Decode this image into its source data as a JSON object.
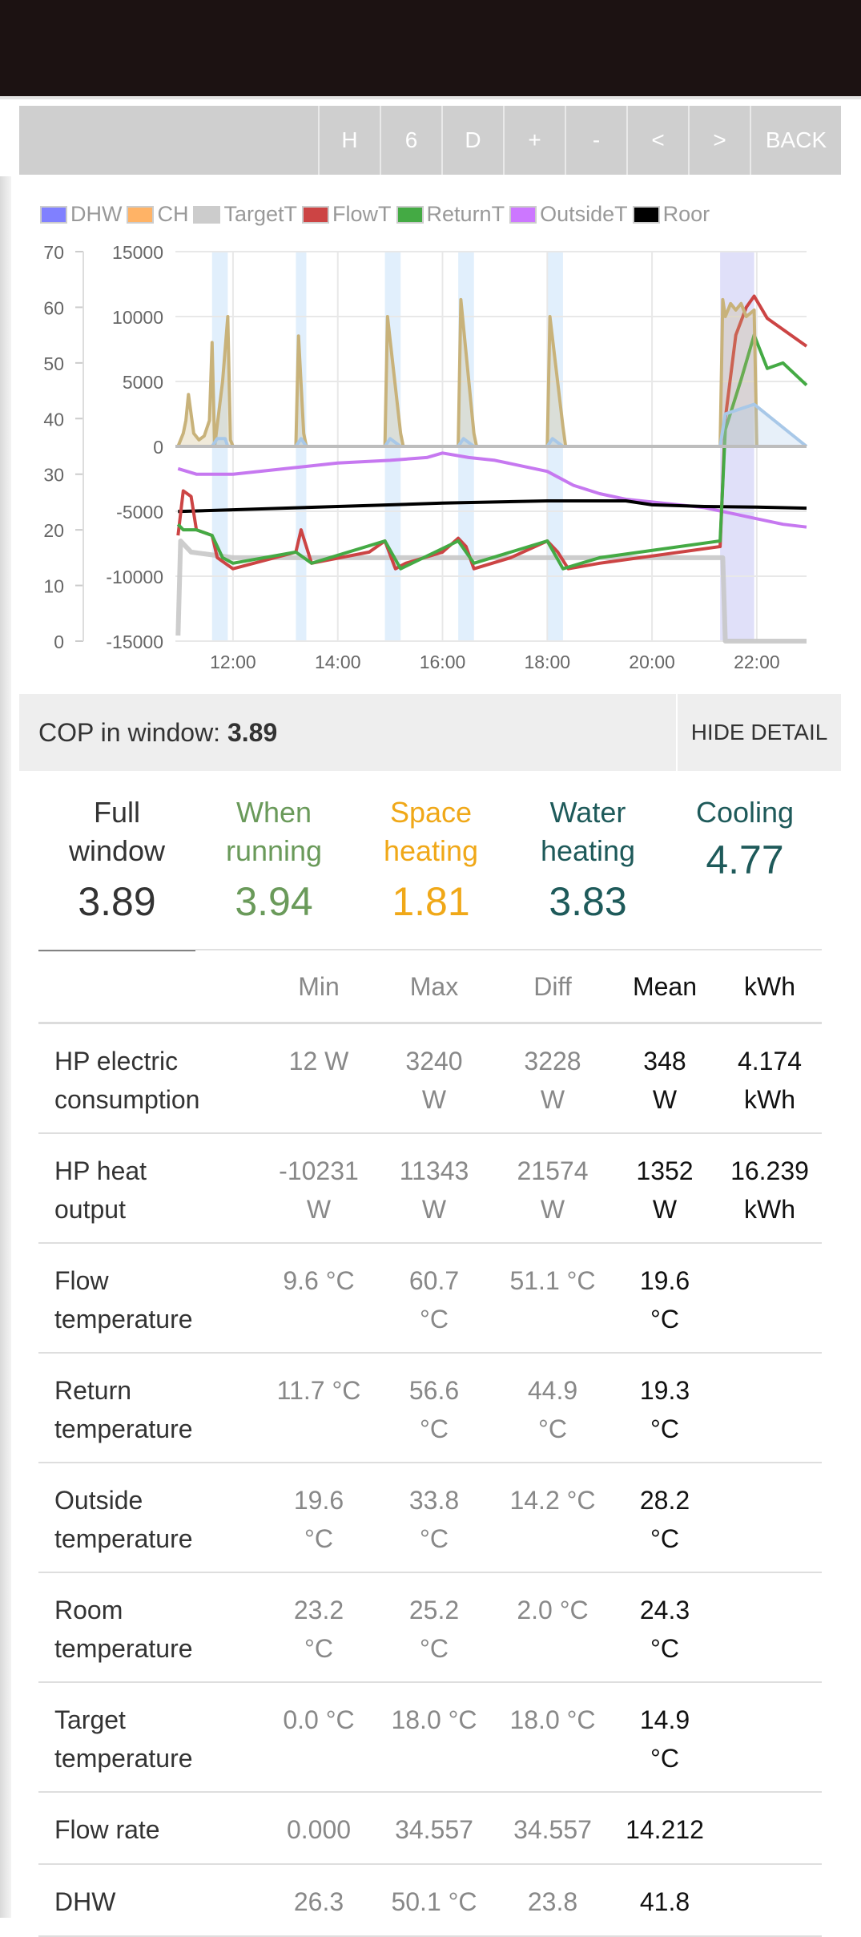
{
  "toolbar": {
    "buttons": [
      "H",
      "6",
      "D",
      "+",
      "-",
      "<",
      ">",
      "BACK"
    ]
  },
  "legend": [
    {
      "label": "DHW",
      "color": "#8080ff"
    },
    {
      "label": "CH",
      "color": "#ffb366"
    },
    {
      "label": "TargetT",
      "color": "#cccccc"
    },
    {
      "label": "FlowT",
      "color": "#cc4444"
    },
    {
      "label": "ReturnT",
      "color": "#44aa44"
    },
    {
      "label": "OutsideT",
      "color": "#cc77ff"
    },
    {
      "label": "Roor",
      "color": "#000000"
    }
  ],
  "chart_data": {
    "type": "line",
    "left_axis_ticks": [
      0,
      10,
      20,
      30,
      40,
      50,
      60,
      70
    ],
    "right_axis_ticks": [
      -15000,
      -10000,
      -5000,
      0,
      5000,
      10000,
      15000
    ],
    "x_ticks": [
      "12:00",
      "14:00",
      "16:00",
      "18:00",
      "20:00",
      "22:00"
    ],
    "x_range": [
      10.9,
      22.95
    ],
    "ylim_left": [
      0,
      70
    ],
    "ylim_right": [
      -15000,
      15000
    ],
    "grid": true,
    "shaded_periods": [
      [
        11.6,
        11.9
      ],
      [
        13.2,
        13.4
      ],
      [
        14.9,
        15.2
      ],
      [
        16.3,
        16.6
      ],
      [
        18.0,
        18.3
      ],
      [
        21.3,
        21.95
      ]
    ],
    "series": [
      {
        "name": "TargetT",
        "color": "#c8c8c8",
        "axis": "left",
        "x": [
          10.95,
          11.0,
          11.2,
          12.0,
          14.0,
          16.0,
          18.0,
          21.35,
          21.4,
          22.95
        ],
        "values": [
          1,
          18,
          16,
          15,
          15,
          15,
          15,
          15,
          0,
          0
        ]
      },
      {
        "name": "OutsideT",
        "color": "#c678f0",
        "axis": "left",
        "x": [
          10.95,
          11.3,
          12.0,
          13.0,
          14.0,
          15.0,
          15.7,
          16.0,
          16.5,
          17.0,
          17.5,
          18.0,
          18.5,
          19.0,
          19.5,
          20.0,
          20.5,
          21.0,
          21.5,
          22.0,
          22.5,
          22.95
        ],
        "values": [
          31,
          30,
          30,
          31,
          32,
          32.5,
          33,
          33.8,
          33,
          32.5,
          31.5,
          30.5,
          28,
          26.5,
          25.5,
          25,
          24.5,
          24,
          23,
          22,
          21,
          20.5
        ]
      },
      {
        "name": "Room",
        "color": "#000000",
        "axis": "left",
        "x": [
          10.95,
          12.0,
          14.0,
          16.0,
          18.0,
          19.5,
          20.0,
          21.0,
          22.0,
          22.95
        ],
        "values": [
          23.3,
          23.6,
          24.2,
          24.8,
          25.2,
          25.2,
          24.5,
          24.2,
          24.1,
          23.9
        ]
      },
      {
        "name": "FlowT",
        "color": "#cc4444",
        "axis": "left",
        "x": [
          10.95,
          11.05,
          11.2,
          11.3,
          11.6,
          11.7,
          12.0,
          13.2,
          13.3,
          13.5,
          14.6,
          14.9,
          15.1,
          15.3,
          16.0,
          16.3,
          16.45,
          16.6,
          17.3,
          18.0,
          18.2,
          18.4,
          19.0,
          21.3,
          21.4,
          21.6,
          21.8,
          21.95,
          22.2,
          22.95
        ],
        "values": [
          19,
          27,
          26,
          20,
          19,
          15,
          13,
          16,
          20,
          14,
          16,
          18,
          13,
          14,
          16,
          18.5,
          17,
          13,
          15,
          18,
          16,
          13,
          14,
          17,
          40,
          55,
          60,
          62,
          58,
          53
        ]
      },
      {
        "name": "ReturnT",
        "color": "#44aa44",
        "axis": "left",
        "x": [
          10.95,
          11.05,
          11.3,
          11.6,
          11.8,
          12.0,
          13.2,
          13.5,
          14.9,
          15.2,
          16.3,
          16.6,
          18.0,
          18.3,
          19.0,
          21.3,
          21.4,
          21.7,
          21.95,
          22.2,
          22.5,
          22.95
        ],
        "values": [
          21,
          20,
          20,
          19,
          15,
          14,
          16,
          14,
          18,
          13,
          18,
          14,
          18,
          13,
          15,
          18,
          38,
          47,
          55,
          49,
          50,
          46
        ]
      },
      {
        "name": "HP heat",
        "color": "#c8b27a",
        "axis": "right",
        "x": [
          10.95,
          11.05,
          11.1,
          11.15,
          11.25,
          11.35,
          11.45,
          11.55,
          11.6,
          11.65,
          11.8,
          11.9,
          11.95,
          12.0,
          13.2,
          13.25,
          13.35,
          13.4,
          14.9,
          14.95,
          15.2,
          15.25,
          16.3,
          16.35,
          16.6,
          16.65,
          18.0,
          18.05,
          18.3,
          18.35,
          21.3,
          21.35,
          21.4,
          21.5,
          21.6,
          21.7,
          21.8,
          21.95,
          22.0,
          22.95
        ],
        "values": [
          0,
          1000,
          2000,
          4000,
          1000,
          500,
          800,
          2000,
          8000,
          0,
          5000,
          10000,
          500,
          0,
          0,
          8500,
          1000,
          0,
          0,
          10000,
          1000,
          0,
          0,
          11300,
          1000,
          0,
          0,
          10000,
          1500,
          0,
          0,
          11300,
          10000,
          11000,
          10500,
          11000,
          10000,
          10500,
          0,
          0
        ]
      },
      {
        "name": "HP elec",
        "color": "#a8c8e8",
        "axis": "right",
        "x": [
          10.95,
          11.6,
          11.7,
          11.85,
          11.9,
          12.0,
          13.2,
          13.3,
          13.4,
          14.9,
          15.0,
          15.2,
          16.3,
          16.4,
          16.6,
          18.0,
          18.1,
          18.3,
          21.3,
          21.4,
          21.95,
          22.95
        ],
        "values": [
          0,
          0,
          600,
          600,
          0,
          0,
          0,
          600,
          0,
          0,
          600,
          0,
          0,
          600,
          0,
          0,
          600,
          0,
          0,
          2500,
          3240,
          0
        ]
      }
    ]
  },
  "cop": {
    "label": "COP in window:",
    "value": "3.89",
    "hide_label": "HIDE DETAIL"
  },
  "tabs": [
    {
      "label1": "Full",
      "label2": "window",
      "value": "3.89",
      "color": "#333333"
    },
    {
      "label1": "When",
      "label2": "running",
      "value": "3.94",
      "color": "#6a9a5a"
    },
    {
      "label1": "Space",
      "label2": "heating",
      "value": "1.81",
      "color": "#f0a818"
    },
    {
      "label1": "Water",
      "label2": "heating",
      "value": "3.83",
      "color": "#1e5a5a"
    },
    {
      "label1": "Cooling",
      "label2": "",
      "value": "4.77",
      "color": "#1e5a5a"
    }
  ],
  "table": {
    "headers": [
      "",
      "Min",
      "Max",
      "Diff",
      "Mean",
      "kWh"
    ],
    "rows": [
      {
        "label1": "HP electric",
        "label2": "consumption",
        "min1": "12 W",
        "min2": "",
        "max1": "3240",
        "max2": "W",
        "diff1": "3228",
        "diff2": "W",
        "mean1": "348",
        "mean2": "W",
        "kwh1": "4.174",
        "kwh2": "kWh"
      },
      {
        "label1": "HP heat",
        "label2": "output",
        "min1": "-10231",
        "min2": "W",
        "max1": "11343",
        "max2": "W",
        "diff1": "21574",
        "diff2": "W",
        "mean1": "1352",
        "mean2": "W",
        "kwh1": "16.239",
        "kwh2": "kWh"
      },
      {
        "label1": "Flow",
        "label2": "temperature",
        "min1": "9.6 °C",
        "min2": "",
        "max1": "60.7",
        "max2": "°C",
        "diff1": "51.1 °C",
        "diff2": "",
        "mean1": "19.6",
        "mean2": "°C",
        "kwh1": "",
        "kwh2": ""
      },
      {
        "label1": "Return",
        "label2": "temperature",
        "min1": "11.7 °C",
        "min2": "",
        "max1": "56.6",
        "max2": "°C",
        "diff1": "44.9",
        "diff2": "°C",
        "mean1": "19.3",
        "mean2": "°C",
        "kwh1": "",
        "kwh2": ""
      },
      {
        "label1": "Outside",
        "label2": "temperature",
        "min1": "19.6",
        "min2": "°C",
        "max1": "33.8",
        "max2": "°C",
        "diff1": "14.2 °C",
        "diff2": "",
        "mean1": "28.2",
        "mean2": "°C",
        "kwh1": "",
        "kwh2": ""
      },
      {
        "label1": "Room",
        "label2": "temperature",
        "min1": "23.2",
        "min2": "°C",
        "max1": "25.2",
        "max2": "°C",
        "diff1": "2.0 °C",
        "diff2": "",
        "mean1": "24.3",
        "mean2": "°C",
        "kwh1": "",
        "kwh2": ""
      },
      {
        "label1": "Target",
        "label2": "temperature",
        "min1": "0.0 °C",
        "min2": "",
        "max1": "18.0 °C",
        "max2": "",
        "diff1": "18.0 °C",
        "diff2": "",
        "mean1": "14.9",
        "mean2": "°C",
        "kwh1": "",
        "kwh2": ""
      },
      {
        "label1": "Flow rate",
        "label2": "",
        "min1": "0.000",
        "min2": "",
        "max1": "34.557",
        "max2": "",
        "diff1": "34.557",
        "diff2": "",
        "mean1": "14.212",
        "mean2": "",
        "kwh1": "",
        "kwh2": ""
      },
      {
        "label1": "DHW",
        "label2": "",
        "min1": "26.3",
        "min2": "",
        "max1": "50.1 °C",
        "max2": "",
        "diff1": "23.8",
        "diff2": "",
        "mean1": "41.8",
        "mean2": "",
        "kwh1": "",
        "kwh2": ""
      }
    ]
  }
}
